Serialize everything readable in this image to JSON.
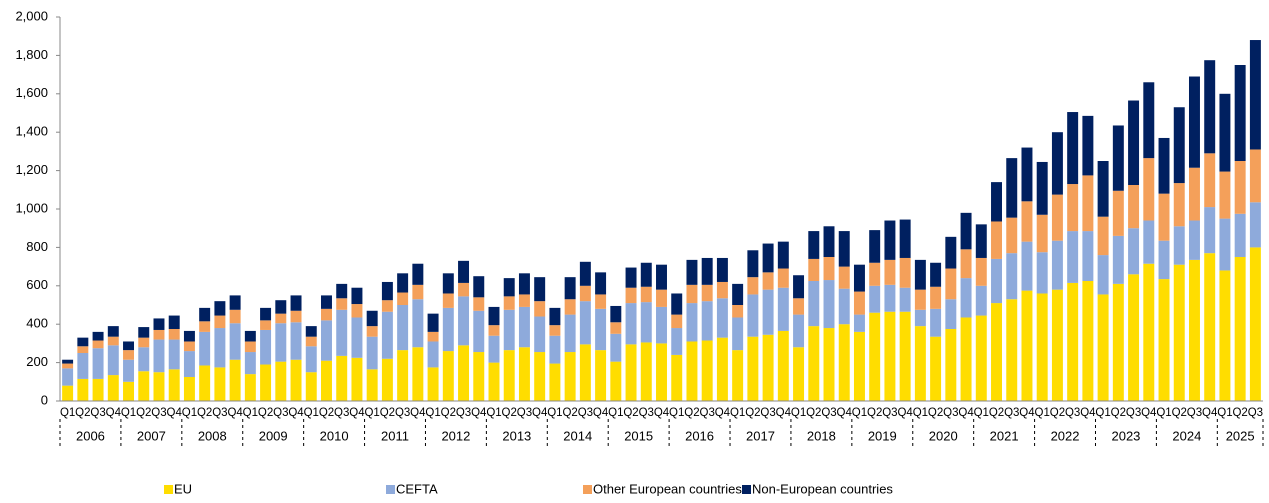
{
  "chart_data": {
    "type": "stacked_bar",
    "categories": [
      "Q1",
      "Q2",
      "Q3",
      "Q4",
      "Q1",
      "Q2",
      "Q3",
      "Q4",
      "Q1",
      "Q2",
      "Q3",
      "Q4",
      "Q1",
      "Q2",
      "Q3",
      "Q4",
      "Q1",
      "Q2",
      "Q3",
      "Q4",
      "Q1",
      "Q2",
      "Q3",
      "Q4",
      "Q1",
      "Q2",
      "Q3",
      "Q4",
      "Q1",
      "Q2",
      "Q3",
      "Q4",
      "Q1",
      "Q2",
      "Q3",
      "Q4",
      "Q1",
      "Q2",
      "Q3",
      "Q4",
      "Q1",
      "Q2",
      "Q3",
      "Q4",
      "Q1",
      "Q2",
      "Q3",
      "Q4",
      "Q1",
      "Q2",
      "Q3",
      "Q4",
      "Q1",
      "Q2",
      "Q3",
      "Q4",
      "Q1",
      "Q2",
      "Q3",
      "Q4",
      "Q1",
      "Q2",
      "Q3",
      "Q4",
      "Q1",
      "Q2",
      "Q3",
      "Q4",
      "Q1",
      "Q2",
      "Q3",
      "Q4",
      "Q1",
      "Q2",
      "Q3",
      "Q4",
      "Q1",
      "Q2",
      "Q3"
    ],
    "years": [
      "2006",
      "2007",
      "2008",
      "2009",
      "2010",
      "2011",
      "2012",
      "2013",
      "2014",
      "2015",
      "2016",
      "2017",
      "2018",
      "2019",
      "2020",
      "2021",
      "2022",
      "2023",
      "2024",
      "2025"
    ],
    "series": [
      {
        "name": "EU",
        "color": "#ffdd00",
        "values": [
          80,
          115,
          115,
          135,
          100,
          155,
          150,
          165,
          125,
          185,
          175,
          215,
          140,
          190,
          205,
          215,
          150,
          210,
          235,
          225,
          165,
          220,
          265,
          280,
          175,
          260,
          290,
          255,
          200,
          265,
          280,
          255,
          195,
          255,
          295,
          265,
          205,
          295,
          305,
          300,
          240,
          310,
          315,
          330,
          265,
          335,
          345,
          365,
          280,
          390,
          380,
          400,
          360,
          460,
          465,
          465,
          390,
          335,
          375,
          435,
          445,
          510,
          530,
          575,
          560,
          580,
          615,
          625,
          555,
          610,
          660,
          715,
          635,
          710,
          735,
          770,
          680,
          750,
          800
        ]
      },
      {
        "name": "CEFTA",
        "color": "#8eaadb",
        "values": [
          90,
          135,
          160,
          155,
          115,
          125,
          170,
          155,
          135,
          175,
          205,
          190,
          115,
          180,
          200,
          195,
          135,
          210,
          240,
          210,
          170,
          245,
          235,
          250,
          135,
          225,
          255,
          215,
          140,
          210,
          210,
          185,
          145,
          195,
          225,
          215,
          145,
          215,
          210,
          190,
          140,
          200,
          205,
          205,
          170,
          220,
          235,
          225,
          170,
          235,
          250,
          185,
          90,
          140,
          140,
          125,
          85,
          145,
          155,
          205,
          155,
          230,
          240,
          255,
          215,
          255,
          270,
          260,
          205,
          250,
          240,
          225,
          200,
          200,
          205,
          240,
          270,
          225,
          235
        ]
      },
      {
        "name": "Other European countries",
        "color": "#f4a05a",
        "values": [
          25,
          35,
          40,
          45,
          50,
          50,
          50,
          55,
          50,
          55,
          65,
          70,
          55,
          50,
          50,
          60,
          50,
          60,
          60,
          70,
          55,
          60,
          65,
          75,
          50,
          75,
          70,
          70,
          55,
          70,
          65,
          80,
          55,
          80,
          80,
          75,
          60,
          80,
          80,
          90,
          70,
          95,
          85,
          85,
          65,
          90,
          90,
          100,
          85,
          115,
          120,
          115,
          120,
          120,
          130,
          155,
          105,
          115,
          160,
          150,
          145,
          195,
          185,
          210,
          195,
          240,
          245,
          290,
          200,
          235,
          225,
          325,
          245,
          225,
          275,
          280,
          245,
          275,
          275
        ]
      },
      {
        "name": "Non-European countries",
        "color": "#002060",
        "values": [
          20,
          45,
          45,
          55,
          45,
          55,
          60,
          70,
          55,
          70,
          75,
          75,
          55,
          65,
          70,
          80,
          55,
          70,
          75,
          85,
          80,
          95,
          100,
          110,
          95,
          105,
          115,
          110,
          95,
          95,
          110,
          125,
          90,
          115,
          125,
          115,
          85,
          105,
          125,
          130,
          110,
          130,
          140,
          125,
          110,
          140,
          150,
          140,
          120,
          145,
          160,
          185,
          140,
          170,
          205,
          200,
          155,
          125,
          165,
          190,
          175,
          205,
          310,
          280,
          275,
          325,
          375,
          310,
          290,
          340,
          440,
          395,
          290,
          395,
          475,
          485,
          405,
          500,
          570
        ]
      }
    ],
    "ylim": [
      0,
      2000
    ],
    "yticks": [
      0,
      200,
      400,
      600,
      800,
      {
        "value": 1000,
        "label": "1,000"
      },
      {
        "value": 1200,
        "label": "1,200"
      },
      {
        "value": 1400,
        "label": "1,400"
      },
      {
        "value": 1600,
        "label": "1,600"
      },
      {
        "value": 1800,
        "label": "1,800"
      },
      {
        "value": 2000,
        "label": "2,000"
      }
    ],
    "grid": false,
    "legend": "bottom"
  }
}
